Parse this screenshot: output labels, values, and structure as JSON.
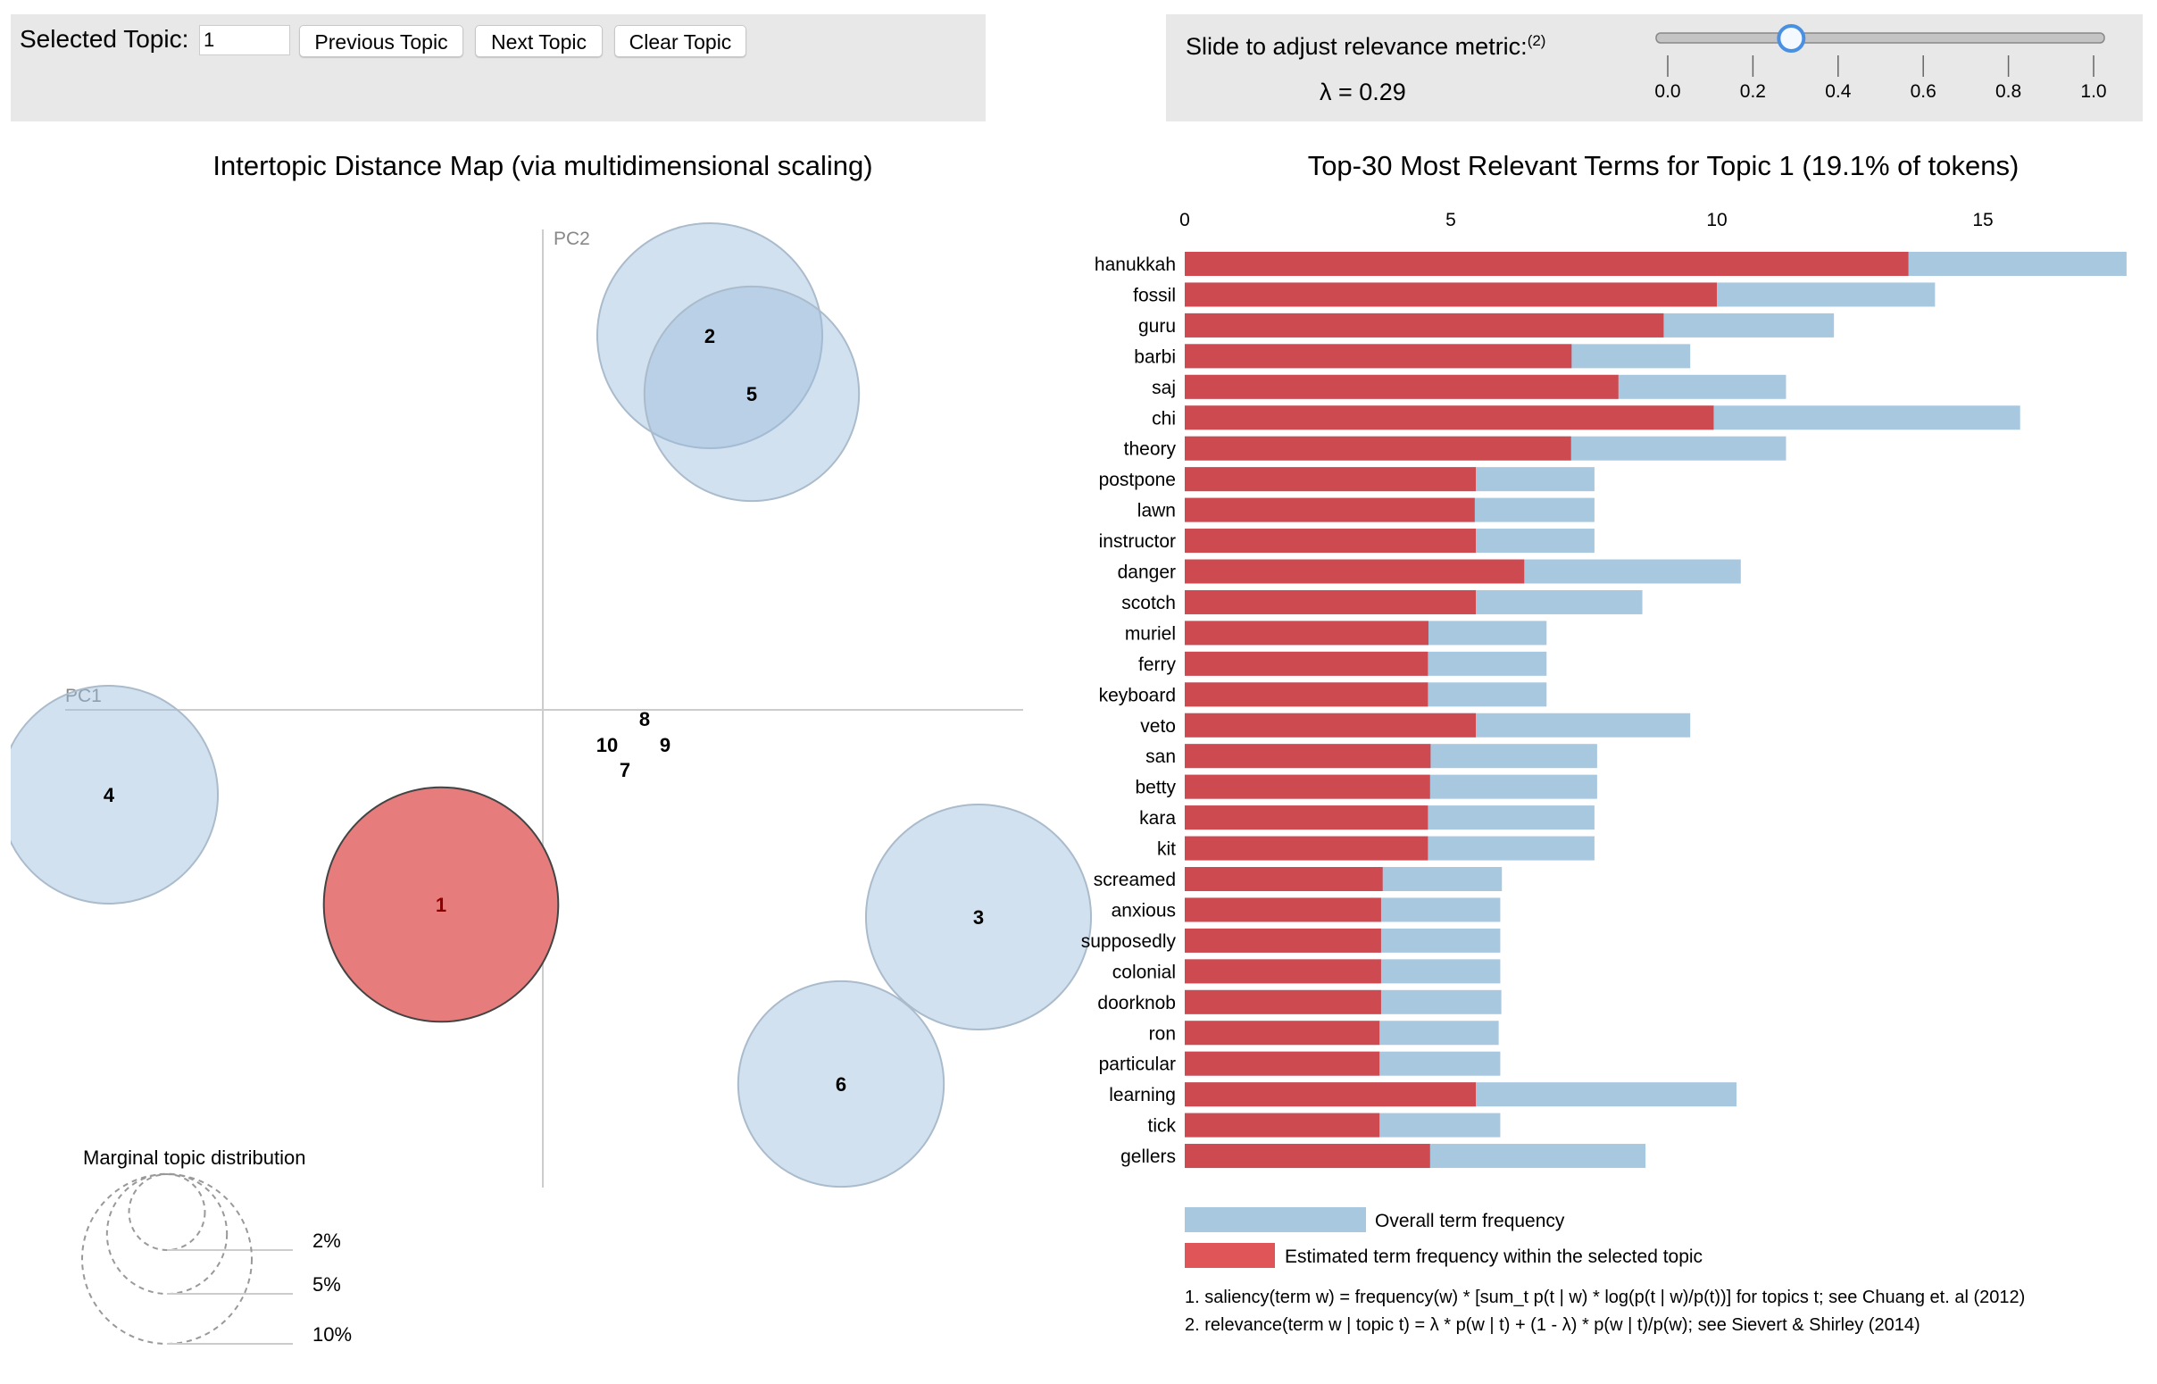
{
  "controls": {
    "selected_topic_label": "Selected Topic:",
    "selected_topic_value": "1",
    "previous_label": "Previous Topic",
    "next_label": "Next Topic",
    "clear_label": "Clear Topic",
    "slider_label": "Slide to adjust relevance metric:",
    "slider_footnote": "(2)",
    "lambda_text": "λ = 0.29",
    "lambda_value": 0.29,
    "slider_ticks": [
      "0.0",
      "0.2",
      "0.4",
      "0.6",
      "0.8",
      "1.0"
    ]
  },
  "colors": {
    "overall_bar": "#a8c8e0",
    "topic_bar": "#cd4a50",
    "legend_topic": "#e05558",
    "topic_circle": "#9bbcdb",
    "selected_circle": "#e77c7d",
    "panel_bg": "#e8e8e8"
  },
  "chart_data": [
    {
      "type": "scatter",
      "title": "Intertopic Distance Map (via multidimensional scaling)",
      "xlabel": "PC1",
      "ylabel": "PC2",
      "selected_topic": "1",
      "topics": [
        {
          "label": "1",
          "marginal_pct": 19.1
        },
        {
          "label": "2",
          "marginal_pct": 17.6
        },
        {
          "label": "3",
          "marginal_pct": 17.6
        },
        {
          "label": "4",
          "marginal_pct": 16.5
        },
        {
          "label": "5",
          "marginal_pct": 16.0
        },
        {
          "label": "6",
          "marginal_pct": 14.7
        },
        {
          "label": "7",
          "marginal_pct": 0.0
        },
        {
          "label": "8",
          "marginal_pct": 0.0
        },
        {
          "label": "9",
          "marginal_pct": 0.0
        },
        {
          "label": "10",
          "marginal_pct": 0.0
        }
      ],
      "size_legend": {
        "title": "Marginal topic distribution",
        "levels": [
          {
            "pct": 2,
            "label": "2%"
          },
          {
            "pct": 5,
            "label": "5%"
          },
          {
            "pct": 10,
            "label": "10%"
          }
        ]
      }
    },
    {
      "type": "bar",
      "orientation": "horizontal",
      "title": "Top-30 Most Relevant Terms for Topic 1 (19.1% of tokens)",
      "xlim": [
        0,
        17.7
      ],
      "xticks": [
        "0",
        "5",
        "10",
        "15"
      ],
      "xtick_values": [
        0,
        5,
        10,
        15
      ],
      "categories": [
        "hanukkah",
        "fossil",
        "guru",
        "barbi",
        "saj",
        "chi",
        "theory",
        "postpone",
        "lawn",
        "instructor",
        "danger",
        "scotch",
        "muriel",
        "ferry",
        "keyboard",
        "veto",
        "san",
        "betty",
        "kara",
        "kit",
        "screamed",
        "anxious",
        "supposedly",
        "colonial",
        "doorknob",
        "ron",
        "particular",
        "learning",
        "tick",
        "gellers"
      ],
      "series": [
        {
          "name": "Overall term frequency",
          "values": [
            17.7,
            14.1,
            12.2,
            9.5,
            11.3,
            15.7,
            11.3,
            7.7,
            7.7,
            7.7,
            10.45,
            8.6,
            6.8,
            6.8,
            6.8,
            9.5,
            7.75,
            7.75,
            7.7,
            7.7,
            5.96,
            5.93,
            5.93,
            5.93,
            5.95,
            5.9,
            5.93,
            10.37,
            5.93,
            8.66
          ]
        },
        {
          "name": "Estimated term frequency within the selected topic",
          "values": [
            13.6,
            10.0,
            9.0,
            7.27,
            8.15,
            9.94,
            7.26,
            5.47,
            5.45,
            5.47,
            6.38,
            5.47,
            4.58,
            4.57,
            4.57,
            5.47,
            4.62,
            4.61,
            4.57,
            4.57,
            3.72,
            3.69,
            3.69,
            3.69,
            3.69,
            3.66,
            3.66,
            5.47,
            3.66,
            4.61
          ]
        }
      ],
      "legend": {
        "overall": "Overall term frequency",
        "topic": "Estimated term frequency within the selected topic"
      },
      "footnotes": [
        "1. saliency(term w) = frequency(w) * [sum_t p(t | w) * log(p(t | w)/p(t))] for topics t; see Chuang et. al (2012)",
        "2. relevance(term w | topic t) = λ * p(w | t) + (1 - λ) * p(w | t)/p(w); see Sievert & Shirley (2014)"
      ]
    }
  ]
}
